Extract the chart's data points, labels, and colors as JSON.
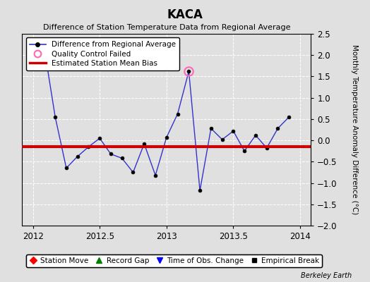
{
  "title": "KACA",
  "subtitle": "Difference of Station Temperature Data from Regional Average",
  "ylabel": "Monthly Temperature Anomaly Difference (°C)",
  "watermark": "Berkeley Earth",
  "xlim": [
    2011.92,
    2014.08
  ],
  "ylim": [
    -2.0,
    2.5
  ],
  "yticks": [
    -2.0,
    -1.5,
    -1.0,
    -0.5,
    0.0,
    0.5,
    1.0,
    1.5,
    2.0,
    2.5
  ],
  "xticks": [
    2012.0,
    2012.5,
    2013.0,
    2013.5,
    2014.0
  ],
  "xticklabels": [
    "2012",
    "2012.5",
    "2013",
    "2013.5",
    "2014"
  ],
  "bias_y": -0.15,
  "background_color": "#e0e0e0",
  "plot_bg_color": "#e0e0e0",
  "line_color": "#3333cc",
  "bias_color": "#cc0000",
  "qc_failed_x": [
    2013.167
  ],
  "qc_failed_y": [
    1.62
  ],
  "data_x": [
    2012.083,
    2012.167,
    2012.25,
    2012.333,
    2012.417,
    2012.5,
    2012.583,
    2012.667,
    2012.75,
    2012.833,
    2012.917,
    2013.0,
    2013.083,
    2013.167,
    2013.25,
    2013.333,
    2013.417,
    2013.5,
    2013.583,
    2013.667,
    2013.75,
    2013.833,
    2013.917
  ],
  "data_y": [
    2.2,
    0.55,
    -0.65,
    -0.38,
    -0.15,
    0.05,
    -0.32,
    -0.42,
    -0.75,
    -0.08,
    -0.82,
    0.07,
    0.62,
    1.62,
    -1.18,
    0.28,
    0.02,
    0.22,
    -0.25,
    0.12,
    -0.18,
    0.28,
    0.55
  ]
}
